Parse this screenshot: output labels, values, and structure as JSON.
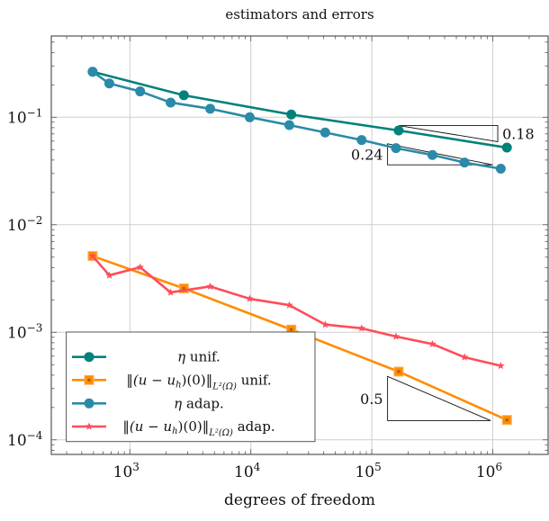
{
  "chart_data": {
    "type": "line",
    "title": "estimators and errors",
    "xlabel": "degrees of freedom",
    "ylabel": "",
    "xscale": "log",
    "yscale": "log",
    "xlim": [
      215,
      3000000
    ],
    "ylim": [
      7.6e-05,
      0.59
    ],
    "grid": true,
    "legend_position": "bottom-left",
    "x_ticks": [
      {
        "value": 1000,
        "base": "10",
        "exp": "3"
      },
      {
        "value": 10000,
        "base": "10",
        "exp": "4"
      },
      {
        "value": 100000,
        "base": "10",
        "exp": "5"
      },
      {
        "value": 1000000,
        "base": "10",
        "exp": "6"
      }
    ],
    "y_ticks": [
      {
        "value": 0.1,
        "base": "10",
        "exp": "−1"
      },
      {
        "value": 0.01,
        "base": "10",
        "exp": "−2"
      },
      {
        "value": 0.001,
        "base": "10",
        "exp": "−3"
      },
      {
        "value": 0.0001,
        "base": "10",
        "exp": "−4"
      }
    ],
    "series": [
      {
        "name": "η unif.",
        "color": "#00827a",
        "marker": "circle",
        "x": [
          492,
          2795,
          21600,
          166700,
          1310000
        ],
        "y": [
          0.265,
          0.16,
          0.106,
          0.0753,
          0.0522
        ]
      },
      {
        "name": "‖(u − u_h)(0)‖_{L²(Ω)} unif.",
        "color": "#ff8c00",
        "marker": "square",
        "x": [
          492,
          2795,
          21600,
          166700,
          1310000
        ],
        "y": [
          0.00512,
          0.00256,
          0.00106,
          0.000431,
          0.000153
        ]
      },
      {
        "name": "η adap.",
        "color": "#2b8aa8",
        "marker": "circle",
        "x": [
          492,
          676,
          1216,
          2174,
          4615,
          9790,
          20800,
          41200,
          82400,
          158500,
          317000,
          584000,
          1165000
        ],
        "y": [
          0.265,
          0.206,
          0.174,
          0.137,
          0.12,
          0.1,
          0.0846,
          0.0721,
          0.0614,
          0.0516,
          0.0446,
          0.0379,
          0.0332
        ]
      },
      {
        "name": "‖(u − u_h)(0)‖_{L²(Ω)} adap.",
        "color": "#ff4d5a",
        "marker": "star",
        "x": [
          492,
          676,
          1216,
          2174,
          4615,
          9790,
          20800,
          41200,
          82400,
          158500,
          317000,
          584000,
          1165000
        ],
        "y": [
          0.00512,
          0.00339,
          0.00403,
          0.00235,
          0.00267,
          0.00205,
          0.00179,
          0.00118,
          0.00109,
          0.000914,
          0.000778,
          0.000586,
          0.000488
        ]
      }
    ],
    "legend": [
      {
        "symbol": "η",
        "text": " unif."
      },
      {
        "symbol": "‖(u − u",
        "sub": "h",
        "mid": ")(0)‖",
        "norm": "L²(Ω)",
        "text": " unif."
      },
      {
        "symbol": "η",
        "text": " adap."
      },
      {
        "symbol": "‖(u − u",
        "sub": "h",
        "mid": ")(0)‖",
        "norm": "L²(Ω)",
        "text": " adap."
      }
    ],
    "slope_triangles": [
      {
        "label": "0.18",
        "x": [
          166700,
          1100000
        ],
        "y": [
          0.0837,
          0.0593
        ],
        "orientation": "upper"
      },
      {
        "label": "0.24",
        "x": [
          135000,
          1000000
        ],
        "y": [
          0.0566,
          0.0361
        ],
        "orientation": "lower"
      },
      {
        "label": "0.5",
        "x": [
          135000,
          960000
        ],
        "y": [
          0.000389,
          0.000151
        ],
        "orientation": "lower"
      }
    ]
  }
}
